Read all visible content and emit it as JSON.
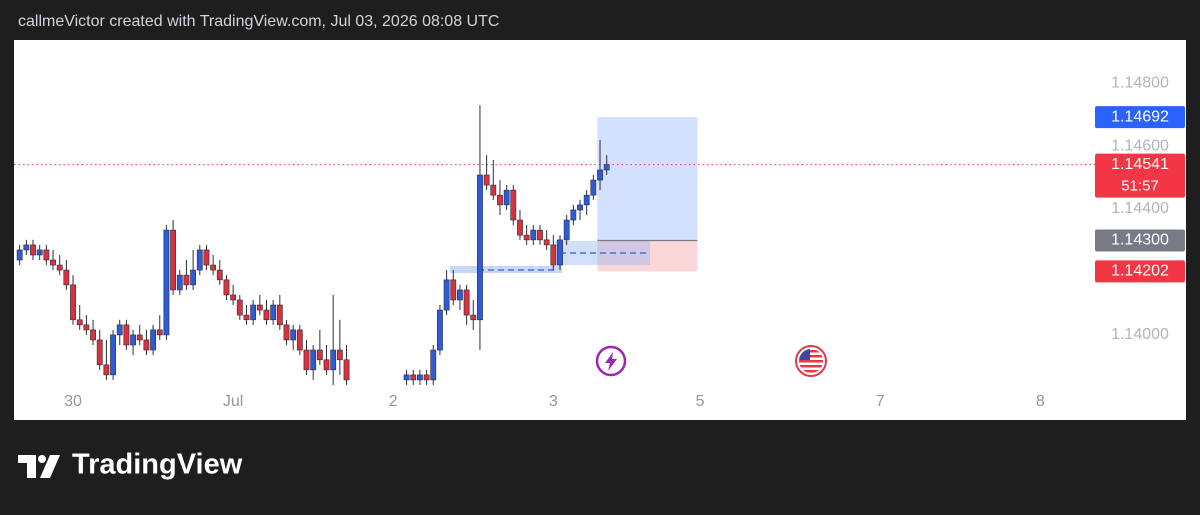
{
  "header": {
    "text": "callmeVictor created with TradingView.com, Jul 03, 2026 08:08 UTC"
  },
  "chart_data": {
    "type": "candlestick",
    "x": [
      -8,
      -7,
      -6,
      -5,
      -4,
      -3,
      -2,
      -1,
      0,
      1,
      2,
      3,
      4,
      5,
      6,
      7,
      8,
      9,
      10,
      11,
      12,
      13,
      14,
      15,
      16,
      17,
      18,
      19,
      20,
      21,
      22,
      23,
      24,
      25,
      26,
      27,
      28,
      29,
      30,
      31,
      32,
      33,
      34,
      35,
      36,
      37,
      38,
      39,
      40,
      41,
      50,
      51,
      52,
      53,
      54,
      55,
      56,
      57,
      58,
      59,
      60,
      61,
      62,
      63,
      64,
      65,
      66,
      67,
      68,
      69,
      70,
      71,
      72,
      73,
      74,
      75,
      76,
      77,
      78,
      79,
      80
    ],
    "open": [
      1.14238,
      1.1427,
      1.14286,
      1.14254,
      1.1427,
      1.14238,
      1.14222,
      1.14206,
      1.14159,
      1.14048,
      1.14032,
      1.14016,
      1.13984,
      1.13905,
      1.13873,
      1.14,
      1.14032,
      1.13968,
      1.14,
      1.13984,
      1.13952,
      1.14016,
      1.14,
      1.14333,
      1.14143,
      1.1419,
      1.14159,
      1.14206,
      1.1427,
      1.14222,
      1.14206,
      1.14175,
      1.14127,
      1.14111,
      1.14063,
      1.14048,
      1.14095,
      1.14079,
      1.14048,
      1.14095,
      1.14032,
      1.13984,
      1.14016,
      1.13952,
      1.13889,
      1.13952,
      1.13921,
      1.13889,
      1.13952,
      1.13921,
      1.13857,
      1.13873,
      1.13857,
      1.13873,
      1.13857,
      1.13952,
      1.14079,
      1.14175,
      1.14111,
      1.14143,
      1.14063,
      1.14048,
      1.14508,
      1.14476,
      1.14444,
      1.14413,
      1.1446,
      1.14365,
      1.14317,
      1.14302,
      1.14333,
      1.14302,
      1.14286,
      1.14222,
      1.14302,
      1.14365,
      1.14397,
      1.14413,
      1.14444,
      1.14492,
      1.14524
    ],
    "high": [
      1.14286,
      1.14302,
      1.14302,
      1.14286,
      1.14286,
      1.1427,
      1.14254,
      1.14238,
      1.1419,
      1.14095,
      1.14063,
      1.14048,
      1.14016,
      1.13984,
      1.14016,
      1.14048,
      1.14048,
      1.14016,
      1.14032,
      1.14016,
      1.14032,
      1.14063,
      1.14349,
      1.14365,
      1.14206,
      1.14238,
      1.1427,
      1.14286,
      1.14286,
      1.14254,
      1.14238,
      1.1419,
      1.14159,
      1.14127,
      1.14095,
      1.14111,
      1.14127,
      1.14111,
      1.14111,
      1.14127,
      1.14048,
      1.14032,
      1.14032,
      1.13984,
      1.13968,
      1.14016,
      1.13968,
      1.14127,
      1.14048,
      1.13968,
      1.13889,
      1.13889,
      1.13889,
      1.13889,
      1.13968,
      1.14095,
      1.14206,
      1.14206,
      1.14159,
      1.14159,
      1.14111,
      1.1473,
      1.14571,
      1.14556,
      1.14492,
      1.14476,
      1.14476,
      1.14397,
      1.14349,
      1.14349,
      1.14349,
      1.14333,
      1.14317,
      1.14317,
      1.14381,
      1.14413,
      1.14429,
      1.1446,
      1.14508,
      1.14619,
      1.14571
    ],
    "low": [
      1.14222,
      1.14254,
      1.14238,
      1.14238,
      1.14222,
      1.14206,
      1.1419,
      1.14143,
      1.14032,
      1.14016,
      1.14,
      1.13968,
      1.13889,
      1.13857,
      1.13857,
      1.13968,
      1.13952,
      1.13936,
      1.13968,
      1.13936,
      1.13936,
      1.13984,
      1.13984,
      1.14127,
      1.14127,
      1.14143,
      1.14143,
      1.1419,
      1.14206,
      1.1419,
      1.14159,
      1.14111,
      1.14095,
      1.14048,
      1.14032,
      1.14032,
      1.14063,
      1.14032,
      1.14032,
      1.14016,
      1.13968,
      1.13952,
      1.13936,
      1.13873,
      1.13857,
      1.13905,
      1.13873,
      1.13841,
      1.13873,
      1.13841,
      1.13841,
      1.13841,
      1.13841,
      1.13841,
      1.13841,
      1.13936,
      1.14063,
      1.14095,
      1.14079,
      1.14032,
      1.14016,
      1.13952,
      1.1446,
      1.14429,
      1.14381,
      1.14397,
      1.14349,
      1.14302,
      1.14286,
      1.14286,
      1.14286,
      1.1427,
      1.14206,
      1.14206,
      1.14286,
      1.14349,
      1.14365,
      1.14381,
      1.14429,
      1.1446,
      1.14508
    ],
    "close": [
      1.1427,
      1.14286,
      1.14254,
      1.1427,
      1.14238,
      1.14222,
      1.14206,
      1.14159,
      1.14048,
      1.14032,
      1.14016,
      1.13984,
      1.13905,
      1.13873,
      1.14,
      1.14032,
      1.13968,
      1.14,
      1.13984,
      1.13952,
      1.14016,
      1.14,
      1.14333,
      1.14143,
      1.1419,
      1.14159,
      1.14206,
      1.1427,
      1.14222,
      1.14206,
      1.14175,
      1.14127,
      1.14111,
      1.14063,
      1.14048,
      1.14095,
      1.14079,
      1.14048,
      1.14095,
      1.14032,
      1.13984,
      1.14016,
      1.13952,
      1.13889,
      1.13952,
      1.13921,
      1.13889,
      1.13952,
      1.13921,
      1.13857,
      1.13873,
      1.13857,
      1.13873,
      1.13857,
      1.13952,
      1.14079,
      1.14175,
      1.14111,
      1.14143,
      1.14063,
      1.14048,
      1.14508,
      1.14476,
      1.14444,
      1.14413,
      1.1446,
      1.14365,
      1.14317,
      1.14302,
      1.14333,
      1.14302,
      1.14286,
      1.14222,
      1.14302,
      1.14365,
      1.14397,
      1.14413,
      1.14444,
      1.14492,
      1.14524,
      1.14541
    ],
    "up_color": "#2f5bd6",
    "down_color": "#d8323f",
    "xlim": [
      -8.85,
      153.2
    ],
    "ylim": [
      1.13825,
      1.14937
    ],
    "xticks": [
      {
        "value": 0,
        "label": "30"
      },
      {
        "value": 24,
        "label": "Jul"
      },
      {
        "value": 48,
        "label": "2"
      },
      {
        "value": 72,
        "label": "3"
      },
      {
        "value": 94,
        "label": "5"
      },
      {
        "value": 121,
        "label": "7"
      },
      {
        "value": 145,
        "label": "8"
      }
    ],
    "yticks": [
      {
        "value": 1.148,
        "label": "1.14800"
      },
      {
        "value": 1.146,
        "label": "1.14600"
      },
      {
        "value": 1.144,
        "label": "1.14400"
      },
      {
        "value": 1.14,
        "label": "1.14000"
      }
    ],
    "grid": false,
    "last_price": {
      "value": 1.14541,
      "countdown": "51:57",
      "color": "#f23645"
    },
    "position": {
      "xrange": [
        78.6,
        93.6
      ],
      "target": 1.14692,
      "entry": {
        "value": 1.143,
        "label": "1.14300"
      },
      "stop": 1.14202,
      "target_color": "#2962ff",
      "entry_color": "#787b86",
      "stop_color": "#f23645"
    }
  },
  "footer": {
    "logo": "TradingView"
  }
}
